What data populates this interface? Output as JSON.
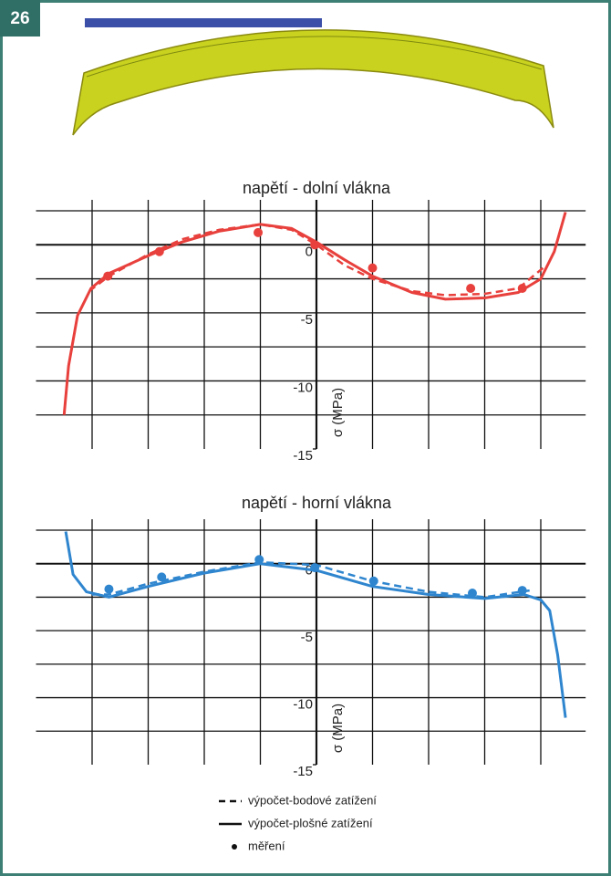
{
  "figure_number": "26",
  "chart_data": [
    {
      "type": "line",
      "title": "napětí - dolní vlákna",
      "y_label": "σ (MPa)",
      "xlim": [
        0,
        9.8
      ],
      "xticks": [
        1,
        2,
        3,
        4,
        5,
        6,
        7,
        8,
        9
      ],
      "ylim": [
        -15,
        2.5
      ],
      "yticks": [
        -15,
        -10,
        -5,
        0
      ],
      "y_minor_ticks": [
        -12.5,
        -7.5,
        -2.5,
        2.5
      ],
      "y_axis_at": 5,
      "grid": true,
      "series": [
        {
          "name": "výpočet-bodové zatížení",
          "color": "#e8403c",
          "style": "dashed",
          "x": [
            0.95,
            1.3,
            2.0,
            2.6,
            3.26,
            4.0,
            4.56,
            5.0,
            5.5,
            6.0,
            6.7,
            7.3,
            8.0,
            8.6,
            9.1
          ],
          "values": [
            -3.4,
            -2.3,
            -0.7,
            0.4,
            1.1,
            1.5,
            1.1,
            0,
            -1.5,
            -2.5,
            -3.4,
            -3.7,
            -3.6,
            -3.2,
            -1.5
          ]
        },
        {
          "name": "výpočet-plošné zatížení",
          "color": "#e8403c",
          "style": "solid",
          "x": [
            0.5,
            0.58,
            0.74,
            0.98,
            1.3,
            2.0,
            2.6,
            3.26,
            4.0,
            4.56,
            5.0,
            5.5,
            6.0,
            6.7,
            7.3,
            8.0,
            8.6,
            9.0,
            9.24,
            9.44
          ],
          "values": [
            -12.5,
            -8.9,
            -5.2,
            -3.2,
            -2.1,
            -0.8,
            0.2,
            1.0,
            1.5,
            1.2,
            0.2,
            -1.1,
            -2.3,
            -3.5,
            -4.0,
            -3.9,
            -3.5,
            -2.5,
            -0.5,
            2.4
          ]
        },
        {
          "name": "měření",
          "color": "#e8403c",
          "style": "markers",
          "x": [
            1.28,
            2.2,
            3.96,
            4.97,
            6.0,
            7.75,
            8.67
          ],
          "values": [
            -2.3,
            -0.5,
            0.9,
            0,
            -1.7,
            -3.2,
            -3.2
          ]
        }
      ]
    },
    {
      "type": "line",
      "title": "napětí - horní vlákna",
      "y_label": "σ (MPa)",
      "xlim": [
        0,
        9.8
      ],
      "xticks": [
        1,
        2,
        3,
        4,
        5,
        6,
        7,
        8,
        9
      ],
      "ylim": [
        -15,
        2.5
      ],
      "yticks": [
        -15,
        -10,
        -5,
        0
      ],
      "y_minor_ticks": [
        -12.5,
        -7.5,
        -2.5,
        2.5
      ],
      "y_axis_at": 5,
      "grid": true,
      "series": [
        {
          "name": "výpočet-bodové zatížení",
          "color": "#2f86cf",
          "style": "dashed",
          "x": [
            1.0,
            1.3,
            2.0,
            3.0,
            4.0,
            5.0,
            6.0,
            7.0,
            8.0,
            8.8
          ],
          "values": [
            -2.3,
            -2.3,
            -1.5,
            -0.6,
            0.1,
            -0.1,
            -1.3,
            -2.1,
            -2.5,
            -2.0
          ]
        },
        {
          "name": "výpočet-plošné zatížení",
          "color": "#2f86cf",
          "style": "solid",
          "x": [
            0.53,
            0.66,
            0.9,
            1.3,
            2.0,
            3.0,
            4.0,
            5.0,
            6.0,
            7.0,
            8.0,
            8.7,
            9.0,
            9.16,
            9.3,
            9.44
          ],
          "values": [
            2.4,
            -0.8,
            -2.1,
            -2.5,
            -1.7,
            -0.7,
            0,
            -0.5,
            -1.7,
            -2.3,
            -2.6,
            -2.3,
            -2.7,
            -3.5,
            -6.8,
            -11.5
          ]
        },
        {
          "name": "měření",
          "color": "#2f86cf",
          "style": "markers",
          "x": [
            1.3,
            2.24,
            3.98,
            4.97,
            6.02,
            7.78,
            8.67
          ],
          "values": [
            -1.9,
            -1.0,
            0.3,
            -0.3,
            -1.3,
            -2.2,
            -2.0
          ]
        }
      ]
    }
  ]
}
